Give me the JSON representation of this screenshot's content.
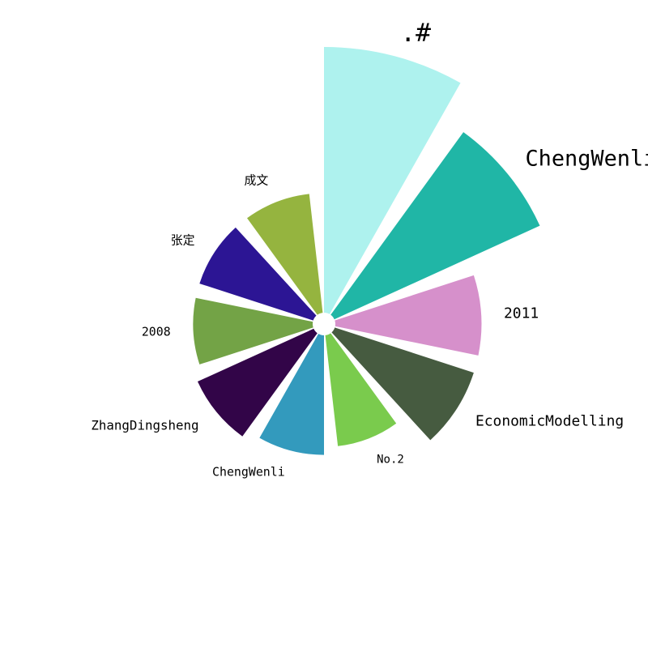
{
  "chart_data": {
    "type": "bar",
    "subtype": "polar",
    "categories": [
      ".#",
      "ChengWenli",
      "2011",
      "EconomicModelling",
      "No.2",
      "ChengWenli",
      "ZhangDingsheng",
      "2008",
      "张定",
      "成文"
    ],
    "values": [
      100,
      85,
      55,
      55,
      42,
      45,
      48,
      45,
      45,
      45
    ],
    "colors": [
      "#aef2ee",
      "#20b6a6",
      "#d690cb",
      "#465b40",
      "#7acb4d",
      "#339abd",
      "#320548",
      "#73a346",
      "#2c1594",
      "#95b43f"
    ],
    "label_weights": [
      100,
      85,
      55,
      55,
      42,
      45,
      48,
      45,
      45,
      45
    ],
    "grid": false,
    "axes_visible": false
  }
}
